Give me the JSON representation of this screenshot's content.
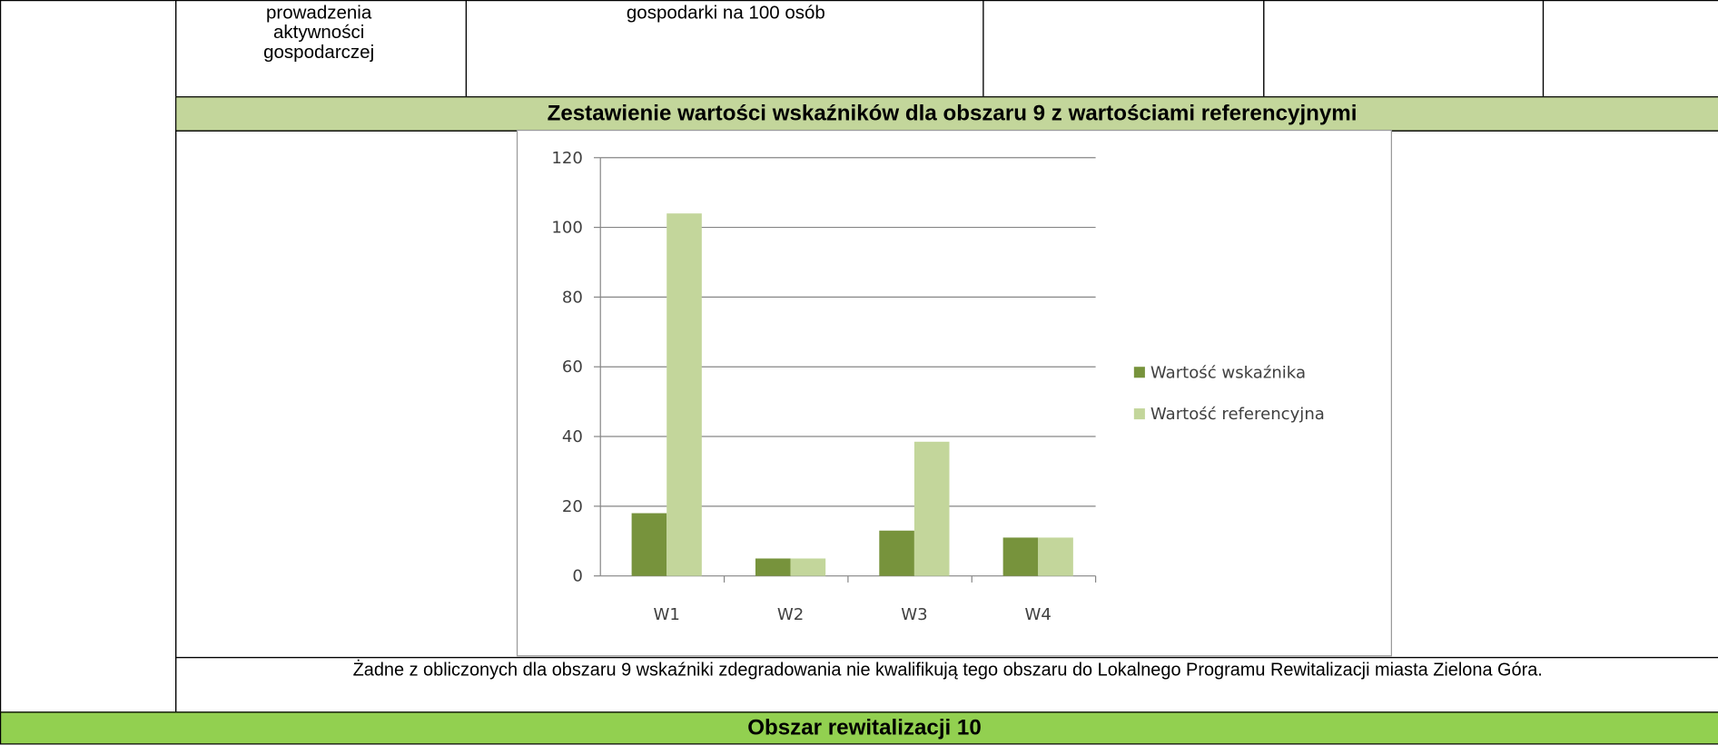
{
  "table": {
    "top_row": {
      "cell_1_lines": [
        "prowadzenia",
        "aktywności",
        "gospodarczej"
      ],
      "cell_2": "gospodarki na 100 osób"
    },
    "section_title": "Zestawienie wartości wskaźników dla obszaru 9 z wartościami referencyjnymi",
    "conclusion": "Żadne z obliczonych dla obszaru 9 wskaźniki zdegradowania nie kwalifikują tego obszaru do Lokalnego Programu Rewitalizacji miasta Zielona Góra.",
    "next_section": "Obszar rewitalizacji 10"
  },
  "chart": {
    "type": "bar",
    "categories": [
      "W1",
      "W2",
      "W3",
      "W4"
    ],
    "series": [
      {
        "name": "Wartość wskaźnika",
        "color": "#77933c",
        "values": [
          18,
          5,
          13,
          11
        ]
      },
      {
        "name": "Wartość referencyjna",
        "color": "#c3d69b",
        "values": [
          104,
          5,
          38.5,
          11
        ]
      }
    ],
    "ylim": [
      0,
      120
    ],
    "yticks": [
      0,
      20,
      40,
      60,
      80,
      100,
      120
    ],
    "grid": true,
    "legend": "right"
  }
}
